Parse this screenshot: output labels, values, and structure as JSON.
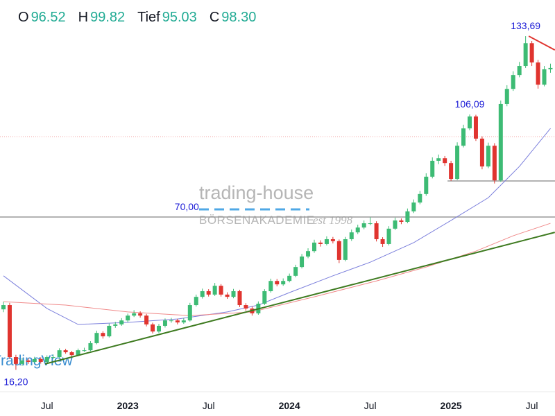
{
  "chart_data": {
    "type": "candlestick",
    "legend": [
      {
        "key": "O",
        "value": "96.52"
      },
      {
        "key": "H",
        "value": "99.82"
      },
      {
        "key": "Tief",
        "value": "95.03"
      },
      {
        "key": "C",
        "value": "98.30"
      }
    ],
    "watermarks": {
      "brand": "trading-house",
      "academy": "BÖRSENAKADEMIE",
      "since": "est 1998",
      "platform": "TradingView"
    },
    "categories": [
      null,
      null,
      null,
      null,
      null,
      null,
      null,
      "Jul",
      null,
      null,
      null,
      null,
      null,
      null,
      null,
      null,
      null,
      null,
      null,
      null,
      "2023",
      null,
      null,
      null,
      null,
      null,
      null,
      null,
      null,
      null,
      null,
      null,
      null,
      "Jul",
      null,
      null,
      null,
      null,
      null,
      null,
      null,
      null,
      null,
      null,
      null,
      null,
      "2024",
      null,
      null,
      null,
      null,
      null,
      null,
      null,
      null,
      null,
      null,
      null,
      null,
      "Jul",
      null,
      null,
      null,
      null,
      null,
      null,
      null,
      null,
      null,
      null,
      null,
      null,
      "2025",
      null,
      null,
      null,
      null,
      null,
      null,
      null,
      null,
      null,
      null,
      null,
      null,
      "Jul",
      null,
      null,
      null
    ],
    "open": [
      37.5,
      39.0,
      20.7,
      18.3,
      19.5,
      19.0,
      20.0,
      19.0,
      20.7,
      20.7,
      23.1,
      22.4,
      21.4,
      23.1,
      23.1,
      25.6,
      29.2,
      28.0,
      31.7,
      32.2,
      33.6,
      35.3,
      36.1,
      35.3,
      32.2,
      29.7,
      31.7,
      33.6,
      33.6,
      32.9,
      33.6,
      39.0,
      41.9,
      43.9,
      42.7,
      45.8,
      42.7,
      41.9,
      43.9,
      39.0,
      37.8,
      36.1,
      39.5,
      43.9,
      47.5,
      46.3,
      47.5,
      49.3,
      52.4,
      56.1,
      58.0,
      61.0,
      60.5,
      62.2,
      61.5,
      54.9,
      62.2,
      64.6,
      66.3,
      67.8,
      67.8,
      62.2,
      60.5,
      65.9,
      68.8,
      68.3,
      72.0,
      75.1,
      78.1,
      84.2,
      89.8,
      90.7,
      89.0,
      83.4,
      95.1,
      101.2,
      105.4,
      97.6,
      87.8,
      95.1,
      82.9,
      109.8,
      115.1,
      120.0,
      123.2,
      131.2,
      124.4,
      116.6,
      122.0
    ],
    "high": [
      40.2,
      39.8,
      21.5,
      20.4,
      20.2,
      20.8,
      20.6,
      21.3,
      21.6,
      23.8,
      23.6,
      22.9,
      23.7,
      24.0,
      26.3,
      30.0,
      29.8,
      32.5,
      33.1,
      34.4,
      36.0,
      37.2,
      36.8,
      35.9,
      32.8,
      32.4,
      34.3,
      34.5,
      34.2,
      34.4,
      39.8,
      42.7,
      44.8,
      44.6,
      46.8,
      46.4,
      43.5,
      44.7,
      44.4,
      39.7,
      38.5,
      40.3,
      44.6,
      48.3,
      48.2,
      48.4,
      50.1,
      53.2,
      57.0,
      59.0,
      62.0,
      61.8,
      63.2,
      63.0,
      62.1,
      63.0,
      65.6,
      67.3,
      68.8,
      69.9,
      68.5,
      62.9,
      66.8,
      69.8,
      69.5,
      73.0,
      76.2,
      79.2,
      85.4,
      91.0,
      92.0,
      91.5,
      89.8,
      96.3,
      102.5,
      106.09,
      106.0,
      98.4,
      96.2,
      96.0,
      111.0,
      116.4,
      121.3,
      124.6,
      133.69,
      132.0,
      125.3,
      123.2,
      124.0
    ],
    "low": [
      36.5,
      20.0,
      16.2,
      17.6,
      18.3,
      18.5,
      18.4,
      18.7,
      20.0,
      20.3,
      21.9,
      20.8,
      21.0,
      22.5,
      22.8,
      25.2,
      27.2,
      27.6,
      31.0,
      31.7,
      33.0,
      34.8,
      34.6,
      31.5,
      29.0,
      29.2,
      31.1,
      32.8,
      32.2,
      32.4,
      33.2,
      38.5,
      41.3,
      42.0,
      42.2,
      42.0,
      41.2,
      41.4,
      38.3,
      37.0,
      35.3,
      35.6,
      39.0,
      43.4,
      45.6,
      45.8,
      47.0,
      48.8,
      51.9,
      55.5,
      57.4,
      59.6,
      60.0,
      60.7,
      53.8,
      54.4,
      61.6,
      64.0,
      65.7,
      67.1,
      61.4,
      59.5,
      60.0,
      65.4,
      67.5,
      67.8,
      71.4,
      74.5,
      77.5,
      83.6,
      88.6,
      88.0,
      82.7,
      83.0,
      94.5,
      100.5,
      96.8,
      86.8,
      87.2,
      81.8,
      82.4,
      109.0,
      114.4,
      119.2,
      122.5,
      123.2,
      115.2,
      116.0,
      120.8
    ],
    "close": [
      39.0,
      20.7,
      18.3,
      19.5,
      19.0,
      20.0,
      19.0,
      20.7,
      20.7,
      23.1,
      22.4,
      21.4,
      23.1,
      23.1,
      25.6,
      29.2,
      28.0,
      31.7,
      32.2,
      33.6,
      35.3,
      36.1,
      35.3,
      32.2,
      29.7,
      31.7,
      33.6,
      33.6,
      32.9,
      33.6,
      39.0,
      41.9,
      43.9,
      42.7,
      45.8,
      42.7,
      41.9,
      43.9,
      39.0,
      37.8,
      36.1,
      39.5,
      43.9,
      47.5,
      46.3,
      47.5,
      49.3,
      52.4,
      56.1,
      58.0,
      61.0,
      60.5,
      62.2,
      61.5,
      54.9,
      62.2,
      64.6,
      66.3,
      67.8,
      67.8,
      62.2,
      60.5,
      65.9,
      68.8,
      68.3,
      72.0,
      75.1,
      78.1,
      84.2,
      89.8,
      90.7,
      89.0,
      83.4,
      95.1,
      101.2,
      105.4,
      97.6,
      87.8,
      95.1,
      82.9,
      109.8,
      115.1,
      120.0,
      123.2,
      131.2,
      124.4,
      116.6,
      122.0,
      122.5
    ],
    "up_color": "#3dbb74",
    "down_color": "#e0342f",
    "ylim": [
      8.5,
      146.4
    ],
    "ma_lines": [
      {
        "color": "#7b7fdc",
        "x": [
          0,
          7,
          12,
          20,
          28,
          36,
          41,
          46,
          53,
          59,
          66,
          72,
          78,
          83,
          88
        ],
        "values": [
          49.3,
          37.8,
          32.2,
          32.9,
          34.1,
          36.6,
          39.0,
          43.4,
          49.3,
          54.1,
          61.0,
          68.8,
          76.8,
          87.8,
          101.2
        ]
      },
      {
        "color": "#f08a8a",
        "x": [
          0,
          10,
          20,
          30,
          40,
          50,
          60,
          68,
          76,
          82,
          88
        ],
        "values": [
          40.2,
          39.0,
          36.6,
          35.3,
          36.6,
          41.9,
          47.5,
          52.4,
          58.0,
          63.4,
          67.8
        ]
      }
    ],
    "trendlines": [
      {
        "color": "#3d7a1f",
        "x": [
          6.7,
          88.7
        ],
        "values": [
          18.3,
          64.6
        ]
      },
      {
        "color": "#e0342f",
        "x": [
          84.5,
          88.7
        ],
        "values": [
          133.69,
          128.8
        ]
      }
    ],
    "hlines": [
      {
        "value": 70,
        "from": 0,
        "color": "#9a9a9a"
      },
      {
        "value": 82.7,
        "from": 72,
        "color": "#9a9a9a"
      }
    ],
    "price_line": {
      "value": 98.3,
      "color": "#f2a0a0"
    },
    "annotations": [
      {
        "index": 2,
        "value": 16.2,
        "label": "16,20",
        "below": true
      },
      {
        "index": 29.5,
        "value": 70,
        "label": "70,00",
        "below": false
      },
      {
        "index": 75,
        "value": 106.09,
        "label": "106,09",
        "below": false
      },
      {
        "index": 84,
        "value": 133.69,
        "label": "133,69",
        "below": false
      }
    ]
  }
}
